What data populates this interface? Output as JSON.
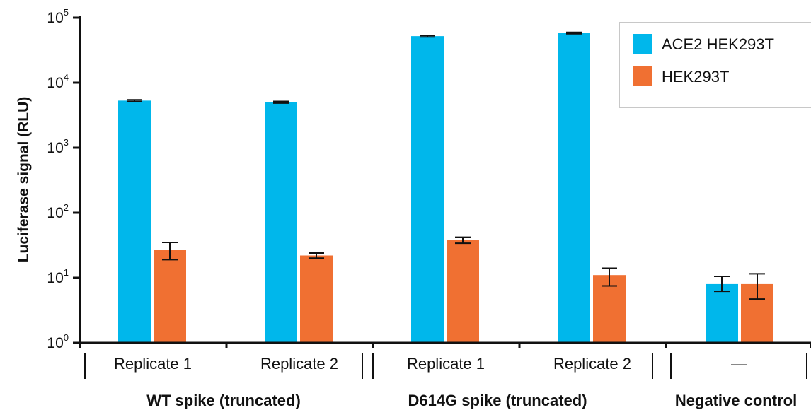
{
  "chart_data": {
    "type": "bar",
    "scale": "log",
    "ylabel": "Luciferase signal (RLU)",
    "ylim": [
      1,
      100000
    ],
    "yticks": [
      {
        "base": "10",
        "exp": "0"
      },
      {
        "base": "10",
        "exp": "1"
      },
      {
        "base": "10",
        "exp": "2"
      },
      {
        "base": "10",
        "exp": "3"
      },
      {
        "base": "10",
        "exp": "4"
      },
      {
        "base": "10",
        "exp": "5"
      }
    ],
    "categories": [
      "Replicate 1",
      "Replicate 2",
      "Replicate 1",
      "Replicate 2",
      "—"
    ],
    "groups": [
      {
        "label": "WT spike (truncated)",
        "categories": [
          0,
          1
        ]
      },
      {
        "label": "D614G spike (truncated)",
        "categories": [
          2,
          3
        ]
      },
      {
        "label": "Negative control",
        "categories": [
          4
        ]
      }
    ],
    "series": [
      {
        "name": "ACE2 HEK293T",
        "color": "#00B7EB",
        "values": [
          5300,
          5000,
          52000,
          58000,
          8
        ],
        "error_low": [
          5150,
          4850,
          50500,
          56500,
          6.2
        ],
        "error_high": [
          5450,
          5150,
          53500,
          59500,
          10.5
        ]
      },
      {
        "name": "HEK293T",
        "color": "#F07032",
        "values": [
          27,
          22,
          38,
          11,
          8
        ],
        "error_low": [
          19,
          20,
          34,
          7.5,
          4.7
        ],
        "error_high": [
          35,
          24,
          42,
          14,
          11.5
        ]
      }
    ],
    "legend_position": "top-right",
    "grid": false
  }
}
